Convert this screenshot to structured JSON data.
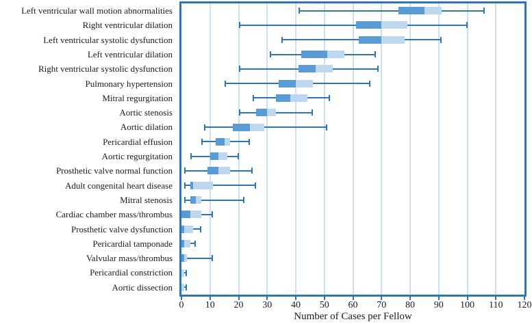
{
  "chart_data": {
    "type": "boxplot",
    "orientation": "horizontal",
    "xlabel": "Number of Cases per Fellow",
    "xlim": [
      0,
      120
    ],
    "xticks": [
      0,
      10,
      20,
      30,
      40,
      50,
      60,
      70,
      80,
      90,
      100,
      110,
      120
    ],
    "grid": "vertical gridlines at each x tick, plot area framed by thick blue border",
    "legend": "none",
    "colors": {
      "box_lower_quartile_fill": "#5B9BD5",
      "box_upper_quartile_fill": "#BDD7EE",
      "whisker_line": "#2E75B6",
      "plot_border": "#2E75B6",
      "gridline": "#CBDFF2",
      "text": "#1A1A1A"
    },
    "series": [
      {
        "label": "Left ventricular wall motion abnormalities",
        "min": 41,
        "q1": 76,
        "median": 85,
        "q3": 91,
        "max": 106
      },
      {
        "label": "Right ventricular dilation",
        "min": 20,
        "q1": 61,
        "median": 70,
        "q3": 79,
        "max": 100
      },
      {
        "label": "Left ventricular systolic dysfunction",
        "min": 35,
        "q1": 62,
        "median": 70,
        "q3": 78,
        "max": 91
      },
      {
        "label": "Left ventricular dilation",
        "min": 31,
        "q1": 42,
        "median": 51,
        "q3": 57,
        "max": 68
      },
      {
        "label": "Right ventricular systolic dysfunction",
        "min": 20,
        "q1": 41,
        "median": 47,
        "q3": 53,
        "max": 69
      },
      {
        "label": "Pulmonary hypertension",
        "min": 15,
        "q1": 34,
        "median": 40,
        "q3": 46,
        "max": 66
      },
      {
        "label": "Mitral regurgitation",
        "min": 25,
        "q1": 33,
        "median": 38,
        "q3": 44,
        "max": 52
      },
      {
        "label": "Aortic stenosis",
        "min": 20,
        "q1": 26,
        "median": 30,
        "q3": 33,
        "max": 46
      },
      {
        "label": "Aortic dilation",
        "min": 8,
        "q1": 18,
        "median": 24,
        "q3": 29,
        "max": 51
      },
      {
        "label": "Pericardial effusion",
        "min": 7,
        "q1": 12,
        "median": 15,
        "q3": 17,
        "max": 24
      },
      {
        "label": "Aortic regurgitation",
        "min": 3,
        "q1": 10,
        "median": 13,
        "q3": 16,
        "max": 20
      },
      {
        "label": "Prosthetic valve normal function",
        "min": 1,
        "q1": 9,
        "median": 13,
        "q3": 17,
        "max": 25
      },
      {
        "label": "Adult congenital heart disease",
        "min": 1,
        "q1": 3,
        "median": 4,
        "q3": 11,
        "max": 26
      },
      {
        "label": "Mitral stenosis",
        "min": 1,
        "q1": 3,
        "median": 5,
        "q3": 7,
        "max": 22
      },
      {
        "label": "Cardiac chamber mass/thrombus",
        "min": 0,
        "q1": 0,
        "median": 3,
        "q3": 7,
        "max": 11
      },
      {
        "label": "Prosthetic valve dysfunction",
        "min": 0,
        "q1": 0,
        "median": 1,
        "q3": 4,
        "max": 7
      },
      {
        "label": "Pericardial tamponade",
        "min": 0,
        "q1": 0,
        "median": 1,
        "q3": 3,
        "max": 5
      },
      {
        "label": "Valvular mass/thrombus",
        "min": 0,
        "q1": 0,
        "median": 1,
        "q3": 2,
        "max": 11
      },
      {
        "label": "Pericardial constriction",
        "min": 0,
        "q1": 0,
        "median": 0,
        "q3": 1,
        "max": 2
      },
      {
        "label": "Aortic dissection",
        "min": 0,
        "q1": 0,
        "median": 0,
        "q3": 1,
        "max": 2
      }
    ]
  }
}
